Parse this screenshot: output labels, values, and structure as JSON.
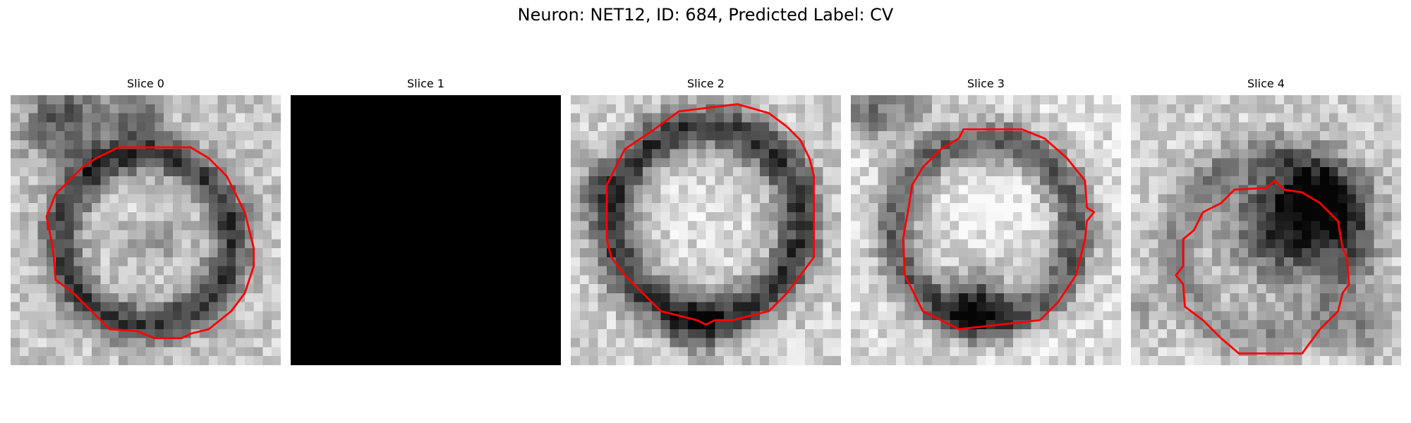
{
  "figure": {
    "title": "Neuron: NET12, ID: 684, Predicted Label: CV",
    "contour_color": "#ff0000",
    "panels": [
      {
        "title": "Slice 0",
        "image": "em-patch-with-contour",
        "blank": false
      },
      {
        "title": "Slice 1",
        "image": "black-empty-patch",
        "blank": true
      },
      {
        "title": "Slice 2",
        "image": "em-patch-with-contour",
        "blank": false
      },
      {
        "title": "Slice 3",
        "image": "em-patch-with-contour",
        "blank": false
      },
      {
        "title": "Slice 4",
        "image": "em-patch-with-contour",
        "blank": false
      }
    ]
  }
}
